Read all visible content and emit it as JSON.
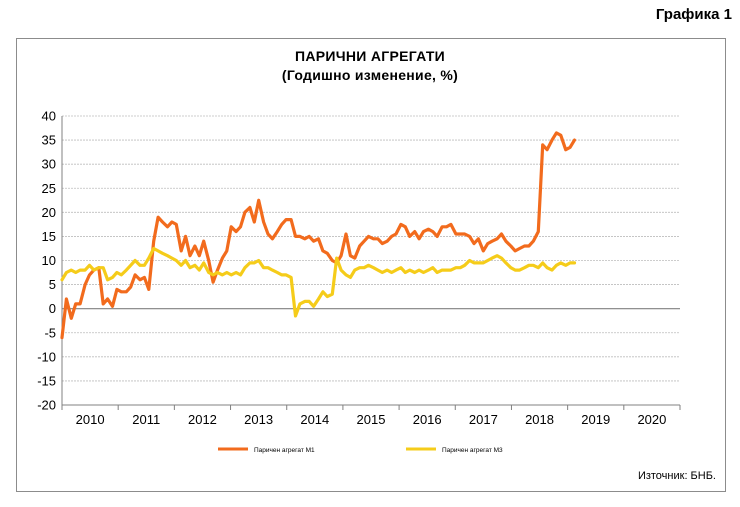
{
  "figure_label": "Графика 1",
  "source": "Източник: БНБ.",
  "colors": {
    "m1": "#f26b1d",
    "m3": "#f5cc1a",
    "grid": "#bdbdbd",
    "axis": "#808080"
  },
  "chart_data": {
    "type": "line",
    "title": "ПАРИЧНИ АГРЕГАТИ",
    "subtitle": "(Годишно изменение, %)",
    "xlabel": "",
    "ylabel": "",
    "ylim": [
      -20,
      40
    ],
    "yticks": [
      -20,
      -15,
      -10,
      -5,
      0,
      5,
      10,
      15,
      20,
      25,
      30,
      35,
      40
    ],
    "xlim": [
      2009.5,
      2020.75
    ],
    "xtick_labels": [
      "2010",
      "2011",
      "2012",
      "2013",
      "2014",
      "2015",
      "2016",
      "2017",
      "2018",
      "2019",
      "2020"
    ],
    "grid": true,
    "legend_position": "bottom",
    "series": [
      {
        "name": "Паричен агрегат М1",
        "color": "#f26b1d",
        "points": [
          [
            2009.5,
            -6
          ],
          [
            2009.58,
            2
          ],
          [
            2009.67,
            -2
          ],
          [
            2009.75,
            1
          ],
          [
            2009.83,
            1
          ],
          [
            2009.92,
            5
          ],
          [
            2010.0,
            7
          ],
          [
            2010.08,
            8
          ],
          [
            2010.17,
            8.5
          ],
          [
            2010.25,
            1
          ],
          [
            2010.33,
            2
          ],
          [
            2010.42,
            0.5
          ],
          [
            2010.5,
            4
          ],
          [
            2010.58,
            3.5
          ],
          [
            2010.67,
            3.5
          ],
          [
            2010.75,
            4.5
          ],
          [
            2010.83,
            7
          ],
          [
            2010.92,
            6
          ],
          [
            2011.0,
            6.5
          ],
          [
            2011.08,
            4
          ],
          [
            2011.17,
            14
          ],
          [
            2011.25,
            19
          ],
          [
            2011.33,
            18
          ],
          [
            2011.42,
            17
          ],
          [
            2011.5,
            18
          ],
          [
            2011.58,
            17.5
          ],
          [
            2011.67,
            12
          ],
          [
            2011.75,
            15
          ],
          [
            2011.83,
            11
          ],
          [
            2011.92,
            13
          ],
          [
            2012.0,
            11
          ],
          [
            2012.08,
            14
          ],
          [
            2012.17,
            10
          ],
          [
            2012.25,
            5.5
          ],
          [
            2012.33,
            8
          ],
          [
            2012.42,
            10.5
          ],
          [
            2012.5,
            12
          ],
          [
            2012.58,
            17
          ],
          [
            2012.67,
            16
          ],
          [
            2012.75,
            17
          ],
          [
            2012.83,
            20
          ],
          [
            2012.92,
            21
          ],
          [
            2013.0,
            18
          ],
          [
            2013.08,
            22.5
          ],
          [
            2013.17,
            18
          ],
          [
            2013.25,
            15.5
          ],
          [
            2013.33,
            14.5
          ],
          [
            2013.42,
            16
          ],
          [
            2013.5,
            17.5
          ],
          [
            2013.58,
            18.5
          ],
          [
            2013.67,
            18.5
          ],
          [
            2013.75,
            15
          ],
          [
            2013.83,
            15
          ],
          [
            2013.92,
            14.5
          ],
          [
            2014.0,
            15
          ],
          [
            2014.08,
            14
          ],
          [
            2014.17,
            14.5
          ],
          [
            2014.25,
            12
          ],
          [
            2014.33,
            11.5
          ],
          [
            2014.42,
            10
          ],
          [
            2014.5,
            9.5
          ],
          [
            2014.58,
            11
          ],
          [
            2014.67,
            15.5
          ],
          [
            2014.75,
            11
          ],
          [
            2014.83,
            10.5
          ],
          [
            2014.92,
            13
          ],
          [
            2015.0,
            14
          ],
          [
            2015.08,
            15
          ],
          [
            2015.17,
            14.5
          ],
          [
            2015.25,
            14.5
          ],
          [
            2015.33,
            13.5
          ],
          [
            2015.42,
            14
          ],
          [
            2015.5,
            15
          ],
          [
            2015.58,
            15.5
          ],
          [
            2015.67,
            17.5
          ],
          [
            2015.75,
            17
          ],
          [
            2015.83,
            15
          ],
          [
            2015.92,
            16
          ],
          [
            2016.0,
            14.5
          ],
          [
            2016.08,
            16
          ],
          [
            2016.17,
            16.5
          ],
          [
            2016.25,
            16
          ],
          [
            2016.33,
            15
          ],
          [
            2016.42,
            17
          ],
          [
            2016.5,
            17
          ],
          [
            2016.58,
            17.5
          ],
          [
            2016.67,
            15.5
          ],
          [
            2016.75,
            15.5
          ],
          [
            2016.83,
            15.5
          ],
          [
            2016.92,
            15
          ],
          [
            2017.0,
            13.5
          ],
          [
            2017.08,
            14.5
          ],
          [
            2017.17,
            12
          ],
          [
            2017.25,
            13.5
          ],
          [
            2017.33,
            14
          ],
          [
            2017.42,
            14.5
          ],
          [
            2017.5,
            15.5
          ],
          [
            2017.58,
            14
          ],
          [
            2017.67,
            13
          ],
          [
            2017.75,
            12
          ],
          [
            2017.83,
            12.5
          ],
          [
            2017.92,
            13
          ],
          [
            2018.0,
            13
          ],
          [
            2018.08,
            14
          ],
          [
            2018.17,
            16
          ],
          [
            2018.25,
            34
          ],
          [
            2018.33,
            33
          ],
          [
            2018.42,
            35
          ],
          [
            2018.5,
            36.5
          ],
          [
            2018.58,
            36
          ],
          [
            2018.67,
            33
          ],
          [
            2018.75,
            33.5
          ],
          [
            2018.83,
            35
          ]
        ]
      },
      {
        "name": "Паричен агрегат М3",
        "color": "#f5cc1a",
        "points": [
          [
            2009.5,
            6
          ],
          [
            2009.58,
            7.5
          ],
          [
            2009.67,
            8
          ],
          [
            2009.75,
            7.5
          ],
          [
            2009.83,
            8
          ],
          [
            2009.92,
            8
          ],
          [
            2010.0,
            9
          ],
          [
            2010.08,
            8
          ],
          [
            2010.17,
            8.5
          ],
          [
            2010.25,
            8.5
          ],
          [
            2010.33,
            6
          ],
          [
            2010.42,
            6.5
          ],
          [
            2010.5,
            7.5
          ],
          [
            2010.58,
            7
          ],
          [
            2010.67,
            8
          ],
          [
            2010.75,
            9
          ],
          [
            2010.83,
            10
          ],
          [
            2010.92,
            9
          ],
          [
            2011.0,
            9
          ],
          [
            2011.08,
            10.5
          ],
          [
            2011.17,
            12.5
          ],
          [
            2011.25,
            12
          ],
          [
            2011.33,
            11.5
          ],
          [
            2011.42,
            11
          ],
          [
            2011.5,
            10.5
          ],
          [
            2011.58,
            10
          ],
          [
            2011.67,
            9
          ],
          [
            2011.75,
            10
          ],
          [
            2011.83,
            8.5
          ],
          [
            2011.92,
            9
          ],
          [
            2012.0,
            8
          ],
          [
            2012.08,
            9.5
          ],
          [
            2012.17,
            7.5
          ],
          [
            2012.25,
            7
          ],
          [
            2012.33,
            7.5
          ],
          [
            2012.42,
            7
          ],
          [
            2012.5,
            7.5
          ],
          [
            2012.58,
            7
          ],
          [
            2012.67,
            7.5
          ],
          [
            2012.75,
            7
          ],
          [
            2012.83,
            8.5
          ],
          [
            2012.92,
            9.5
          ],
          [
            2013.0,
            9.5
          ],
          [
            2013.08,
            10
          ],
          [
            2013.17,
            8.5
          ],
          [
            2013.25,
            8.5
          ],
          [
            2013.33,
            8
          ],
          [
            2013.42,
            7.5
          ],
          [
            2013.5,
            7
          ],
          [
            2013.58,
            7
          ],
          [
            2013.67,
            6.5
          ],
          [
            2013.75,
            -1.5
          ],
          [
            2013.83,
            1
          ],
          [
            2013.92,
            1.5
          ],
          [
            2014.0,
            1.5
          ],
          [
            2014.08,
            0.5
          ],
          [
            2014.17,
            2
          ],
          [
            2014.25,
            3.5
          ],
          [
            2014.33,
            2.5
          ],
          [
            2014.42,
            3
          ],
          [
            2014.5,
            10.5
          ],
          [
            2014.58,
            8
          ],
          [
            2014.67,
            7
          ],
          [
            2014.75,
            6.5
          ],
          [
            2014.83,
            8
          ],
          [
            2014.92,
            8.5
          ],
          [
            2015.0,
            8.5
          ],
          [
            2015.08,
            9
          ],
          [
            2015.17,
            8.5
          ],
          [
            2015.25,
            8
          ],
          [
            2015.33,
            7.5
          ],
          [
            2015.42,
            8
          ],
          [
            2015.5,
            7.5
          ],
          [
            2015.58,
            8
          ],
          [
            2015.67,
            8.5
          ],
          [
            2015.75,
            7.5
          ],
          [
            2015.83,
            8
          ],
          [
            2015.92,
            7.5
          ],
          [
            2016.0,
            8
          ],
          [
            2016.08,
            7.5
          ],
          [
            2016.17,
            8
          ],
          [
            2016.25,
            8.5
          ],
          [
            2016.33,
            7.5
          ],
          [
            2016.42,
            8
          ],
          [
            2016.5,
            8
          ],
          [
            2016.58,
            8
          ],
          [
            2016.67,
            8.5
          ],
          [
            2016.75,
            8.5
          ],
          [
            2016.83,
            9
          ],
          [
            2016.92,
            10
          ],
          [
            2017.0,
            9.5
          ],
          [
            2017.08,
            9.5
          ],
          [
            2017.17,
            9.5
          ],
          [
            2017.25,
            10
          ],
          [
            2017.33,
            10.5
          ],
          [
            2017.42,
            11
          ],
          [
            2017.5,
            10.5
          ],
          [
            2017.58,
            9.5
          ],
          [
            2017.67,
            8.5
          ],
          [
            2017.75,
            8
          ],
          [
            2017.83,
            8
          ],
          [
            2017.92,
            8.5
          ],
          [
            2018.0,
            9
          ],
          [
            2018.08,
            9
          ],
          [
            2018.17,
            8.5
          ],
          [
            2018.25,
            9.5
          ],
          [
            2018.33,
            8.5
          ],
          [
            2018.42,
            8
          ],
          [
            2018.5,
            9
          ],
          [
            2018.58,
            9.5
          ],
          [
            2018.67,
            9
          ],
          [
            2018.75,
            9.5
          ],
          [
            2018.83,
            9.5
          ]
        ]
      }
    ]
  }
}
